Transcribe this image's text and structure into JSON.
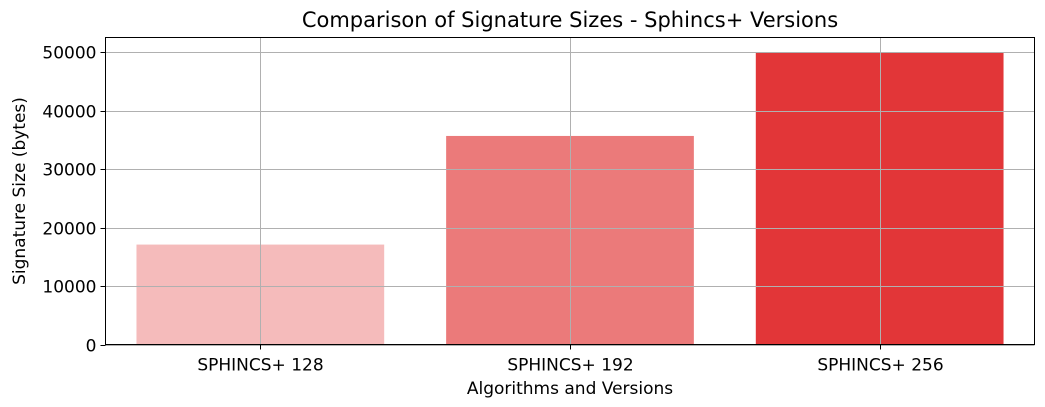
{
  "chart_data": {
    "type": "bar",
    "title": "Comparison of Signature Sizes - Sphincs+ Versions",
    "xlabel": "Algorithms and Versions",
    "ylabel": "Signature Size (bytes)",
    "categories": [
      "SPHINCS+ 128",
      "SPHINCS+ 192",
      "SPHINCS+ 256"
    ],
    "values": [
      17088,
      35664,
      49856
    ],
    "bar_colors": [
      "#f5bbbb",
      "#eb7a7a",
      "#e23638"
    ],
    "ylim": [
      0,
      52500
    ],
    "yticks": [
      0,
      10000,
      20000,
      30000,
      40000,
      50000
    ],
    "ytick_labels": [
      "0",
      "10000",
      "20000",
      "30000",
      "40000",
      "50000"
    ],
    "grid": true,
    "legend": "none"
  }
}
